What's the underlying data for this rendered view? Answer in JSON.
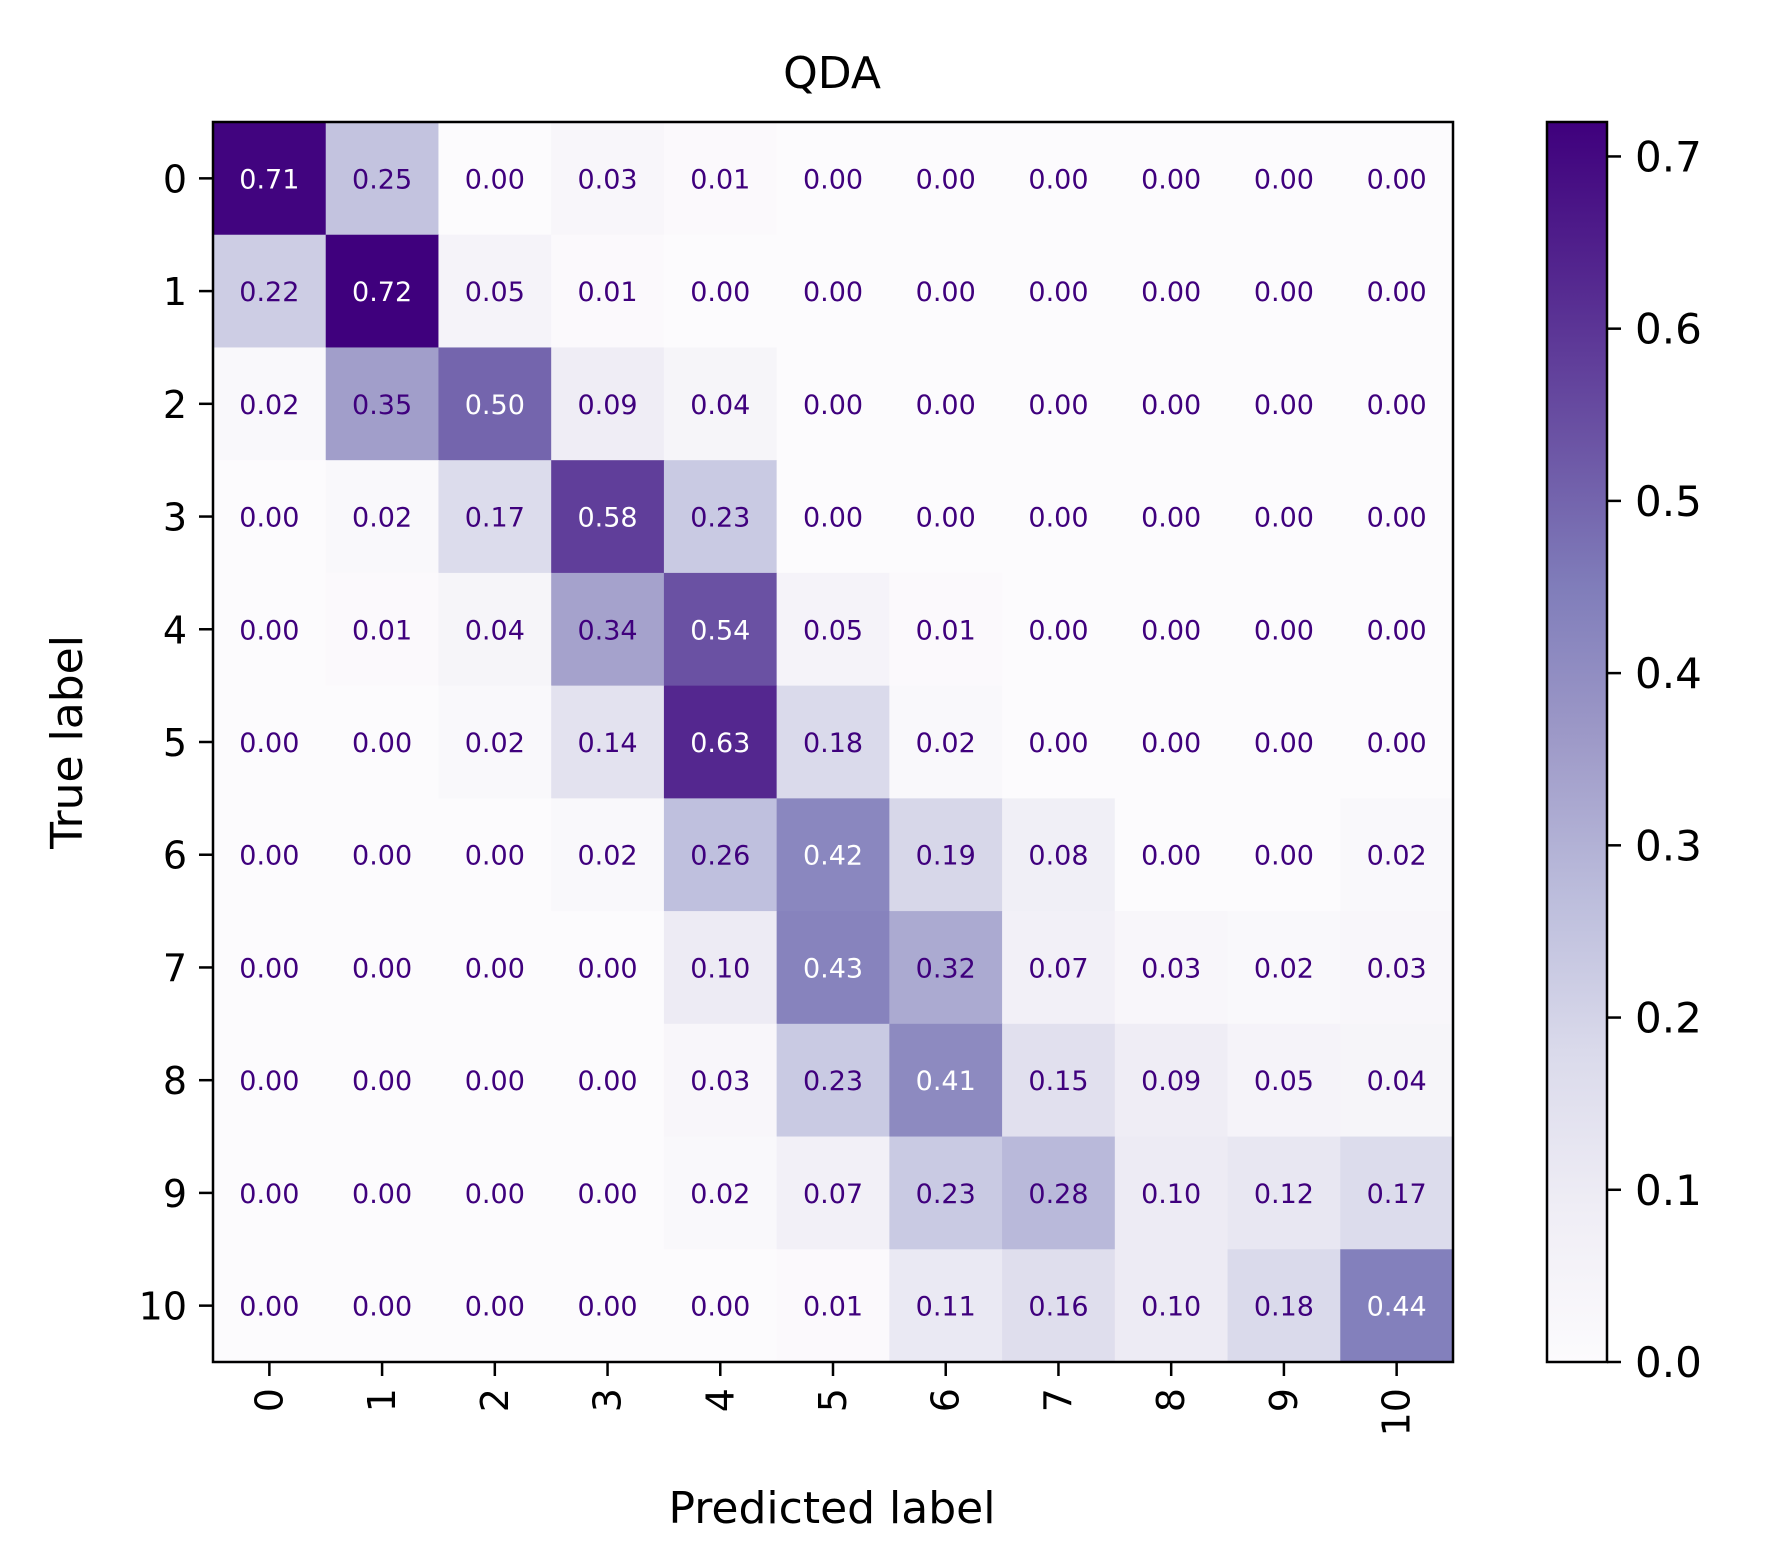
{
  "chart_data": {
    "type": "heatmap",
    "title": "QDA",
    "xlabel": "Predicted label",
    "ylabel": "True label",
    "x_ticks": [
      "0",
      "1",
      "2",
      "3",
      "4",
      "5",
      "6",
      "7",
      "8",
      "9",
      "10"
    ],
    "y_ticks": [
      "0",
      "1",
      "2",
      "3",
      "4",
      "5",
      "6",
      "7",
      "8",
      "9",
      "10"
    ],
    "matrix": [
      [
        0.71,
        0.25,
        0.0,
        0.03,
        0.01,
        0.0,
        0.0,
        0.0,
        0.0,
        0.0,
        0.0
      ],
      [
        0.22,
        0.72,
        0.05,
        0.01,
        0.0,
        0.0,
        0.0,
        0.0,
        0.0,
        0.0,
        0.0
      ],
      [
        0.02,
        0.35,
        0.5,
        0.09,
        0.04,
        0.0,
        0.0,
        0.0,
        0.0,
        0.0,
        0.0
      ],
      [
        0.0,
        0.02,
        0.17,
        0.58,
        0.23,
        0.0,
        0.0,
        0.0,
        0.0,
        0.0,
        0.0
      ],
      [
        0.0,
        0.01,
        0.04,
        0.34,
        0.54,
        0.05,
        0.01,
        0.0,
        0.0,
        0.0,
        0.0
      ],
      [
        0.0,
        0.0,
        0.02,
        0.14,
        0.63,
        0.18,
        0.02,
        0.0,
        0.0,
        0.0,
        0.0
      ],
      [
        0.0,
        0.0,
        0.0,
        0.02,
        0.26,
        0.42,
        0.19,
        0.08,
        0.0,
        0.0,
        0.02
      ],
      [
        0.0,
        0.0,
        0.0,
        0.0,
        0.1,
        0.43,
        0.32,
        0.07,
        0.03,
        0.02,
        0.03
      ],
      [
        0.0,
        0.0,
        0.0,
        0.0,
        0.03,
        0.23,
        0.41,
        0.15,
        0.09,
        0.05,
        0.04
      ],
      [
        0.0,
        0.0,
        0.0,
        0.0,
        0.02,
        0.07,
        0.23,
        0.28,
        0.1,
        0.12,
        0.17
      ],
      [
        0.0,
        0.0,
        0.0,
        0.0,
        0.0,
        0.01,
        0.11,
        0.16,
        0.1,
        0.18,
        0.44
      ]
    ],
    "colorbar": {
      "min": 0.0,
      "max": 0.72,
      "ticks": [
        "0.0",
        "0.1",
        "0.2",
        "0.3",
        "0.4",
        "0.5",
        "0.6",
        "0.7"
      ],
      "colormap": "Purples",
      "low_color": "#fcfbfd",
      "high_color": "#3f007d"
    },
    "cell_text_dark": "#3f007d",
    "cell_text_light": "#ffffff",
    "grid": false
  }
}
